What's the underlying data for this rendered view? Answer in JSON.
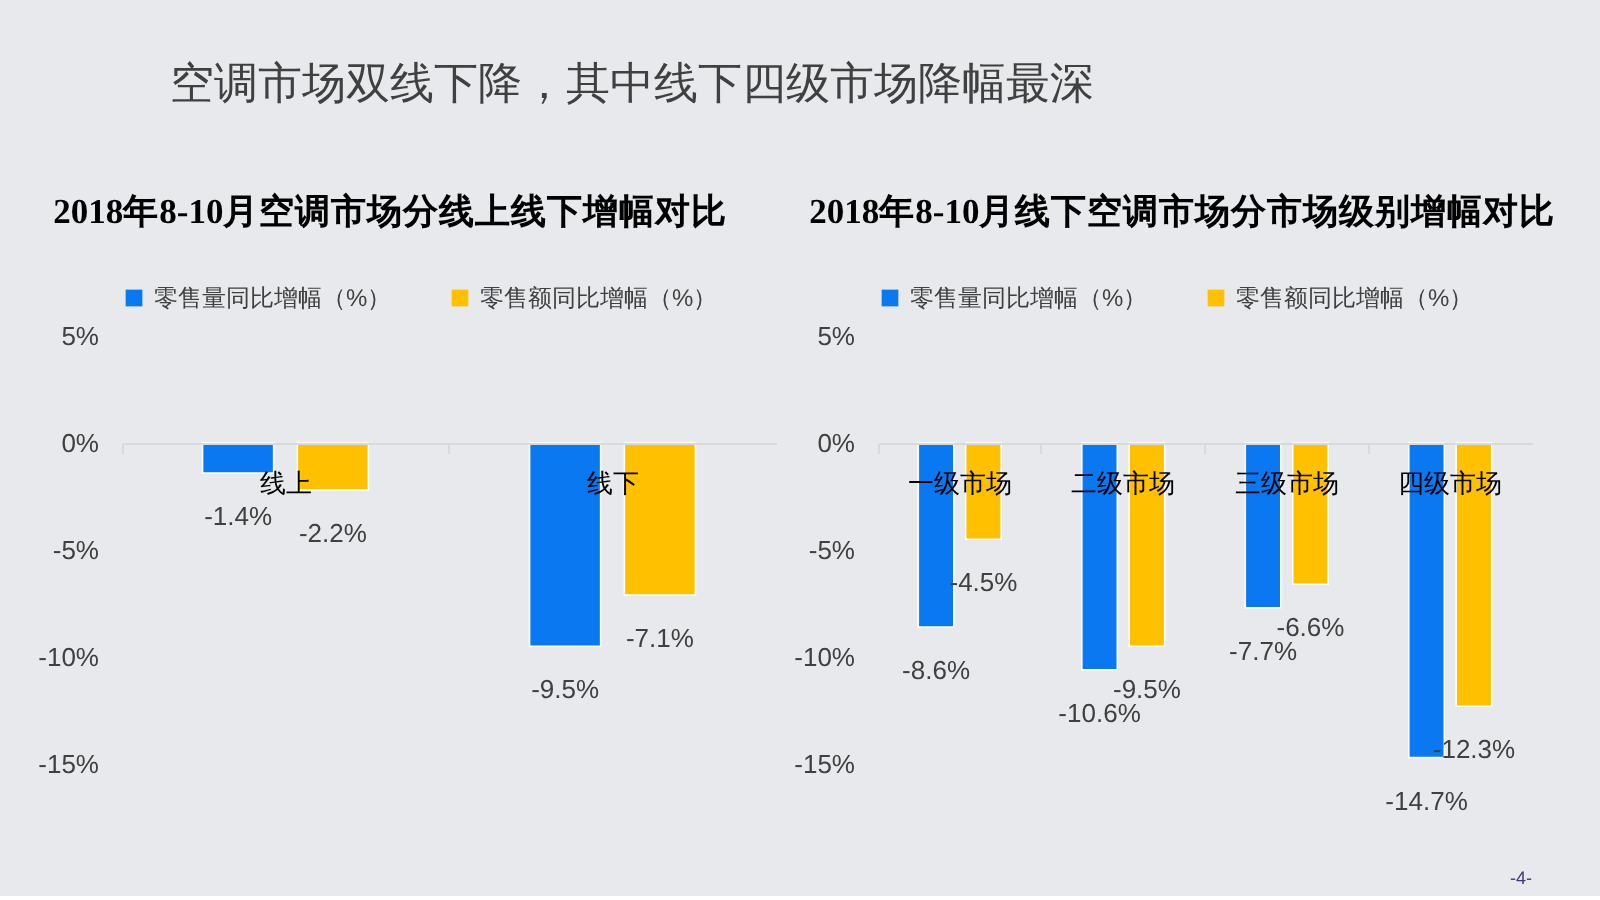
{
  "chart_data": [
    {
      "type": "other",
      "title": "空调市场双线下降，其中线下四级市场降幅最深",
      "annotations": [
        "-4-"
      ]
    },
    {
      "type": "bar",
      "title": "2018年8-10月空调市场分线上线下增幅对比",
      "categories": [
        "线上",
        "线下"
      ],
      "series": [
        {
          "name": "零售量同比增幅（%）",
          "color": "#0a78f0",
          "values": [
            -1.4,
            -9.5
          ],
          "value_labels": [
            "-1.4%",
            "-9.5%"
          ]
        },
        {
          "name": "零售额同比增幅（%）",
          "color": "#ffc000",
          "values": [
            -2.2,
            -7.1
          ],
          "value_labels": [
            "-2.2%",
            "-7.1%"
          ]
        }
      ],
      "ylim": [
        -15,
        5
      ],
      "yticks": [
        {
          "value": 5,
          "label": "5%"
        },
        {
          "value": 0,
          "label": "0%"
        },
        {
          "value": -5,
          "label": "-5%"
        },
        {
          "value": -10,
          "label": "-10%"
        },
        {
          "value": -15,
          "label": "-15%"
        }
      ],
      "grid": false,
      "legend": "top"
    },
    {
      "type": "bar",
      "title": "2018年8-10月线下空调市场分市场级别增幅对比",
      "categories": [
        "一级市场",
        "二级市场",
        "三级市场",
        "四级市场"
      ],
      "series": [
        {
          "name": "零售量同比增幅（%）",
          "color": "#0a78f0",
          "values": [
            -8.6,
            -10.6,
            -7.7,
            -14.7
          ],
          "value_labels": [
            "-8.6%",
            "-10.6%",
            "-7.7%",
            "-14.7%"
          ]
        },
        {
          "name": "零售额同比增幅（%）",
          "color": "#ffc000",
          "values": [
            -4.5,
            -9.5,
            -6.6,
            -12.3
          ],
          "value_labels": [
            "-4.5%",
            "-9.5%",
            "-6.6%",
            "-12.3%"
          ]
        }
      ],
      "ylim": [
        -15,
        5
      ],
      "yticks": [
        {
          "value": 5,
          "label": "5%"
        },
        {
          "value": 0,
          "label": "0%"
        },
        {
          "value": -5,
          "label": "-5%"
        },
        {
          "value": -10,
          "label": "-10%"
        },
        {
          "value": -15,
          "label": "-15%"
        }
      ],
      "grid": false,
      "legend": "top"
    }
  ]
}
